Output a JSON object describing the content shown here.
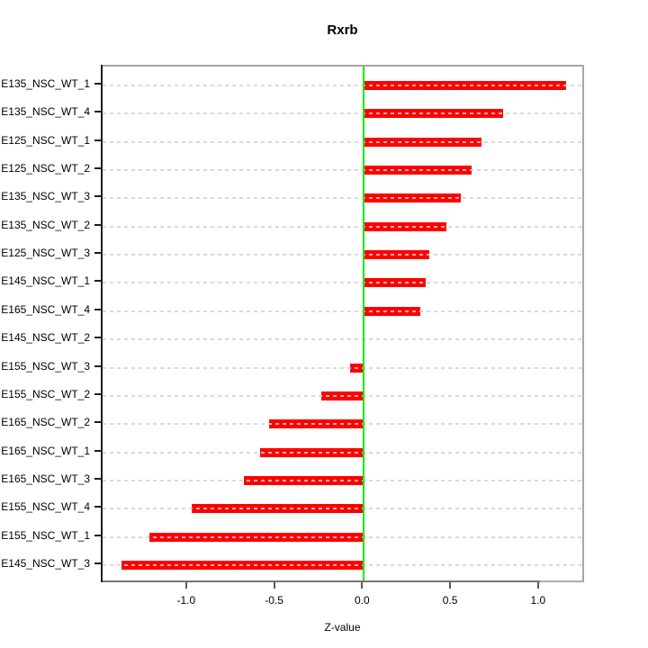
{
  "title": "Rxrb",
  "xlabel": "Z-value",
  "chart_data": {
    "type": "bar",
    "orientation": "horizontal",
    "title": "Rxrb",
    "xlabel": "Z-value",
    "ylabel": "",
    "categories": [
      "E135_NSC_WT_1",
      "E135_NSC_WT_4",
      "E125_NSC_WT_1",
      "E125_NSC_WT_2",
      "E135_NSC_WT_3",
      "E135_NSC_WT_2",
      "E125_NSC_WT_3",
      "E145_NSC_WT_1",
      "E165_NSC_WT_4",
      "E145_NSC_WT_2",
      "E155_NSC_WT_3",
      "E155_NSC_WT_2",
      "E165_NSC_WT_2",
      "E165_NSC_WT_1",
      "E165_NSC_WT_3",
      "E155_NSC_WT_4",
      "E155_NSC_WT_1",
      "E145_NSC_WT_3"
    ],
    "values": [
      1.15,
      0.79,
      0.67,
      0.61,
      0.55,
      0.47,
      0.37,
      0.35,
      0.32,
      0.005,
      -0.08,
      -0.24,
      -0.54,
      -0.59,
      -0.68,
      -0.98,
      -1.22,
      -1.38
    ],
    "xlim": [
      -1.485,
      1.262
    ],
    "xticks": [
      -1.0,
      -0.5,
      0.0,
      0.5,
      1.0
    ],
    "xtick_labels": [
      "-1.0",
      "-0.5",
      "0.0",
      "0.5",
      "1.0"
    ],
    "grid": true,
    "legend": "none",
    "bar_color": "#ff0000",
    "zero_line_color": "#00ee00",
    "gridline_color": "#d4d4d4",
    "axis_box_color": "#a6a6a6"
  }
}
